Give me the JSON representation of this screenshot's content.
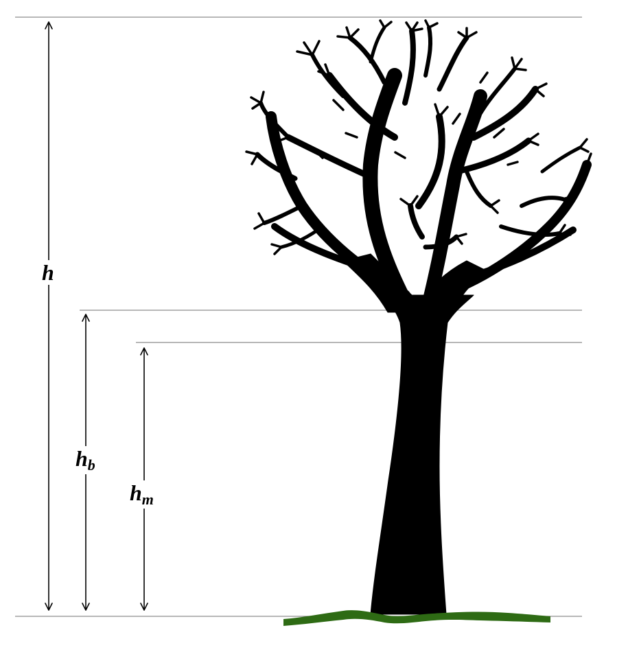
{
  "labels": {
    "total_height": {
      "base": "h",
      "sub": ""
    },
    "base_height": {
      "base": "h",
      "sub": "b"
    },
    "merchantable_height": {
      "base": "h",
      "sub": "m"
    }
  },
  "colors": {
    "tree": "#000000",
    "ground": "#2e6b14",
    "reference_lines": "#8c8c8c",
    "dimension_arrows": "#000000",
    "background": "#ffffff"
  },
  "icons": {
    "tree": "tree-silhouette-icon",
    "ground": "grass-strip"
  }
}
